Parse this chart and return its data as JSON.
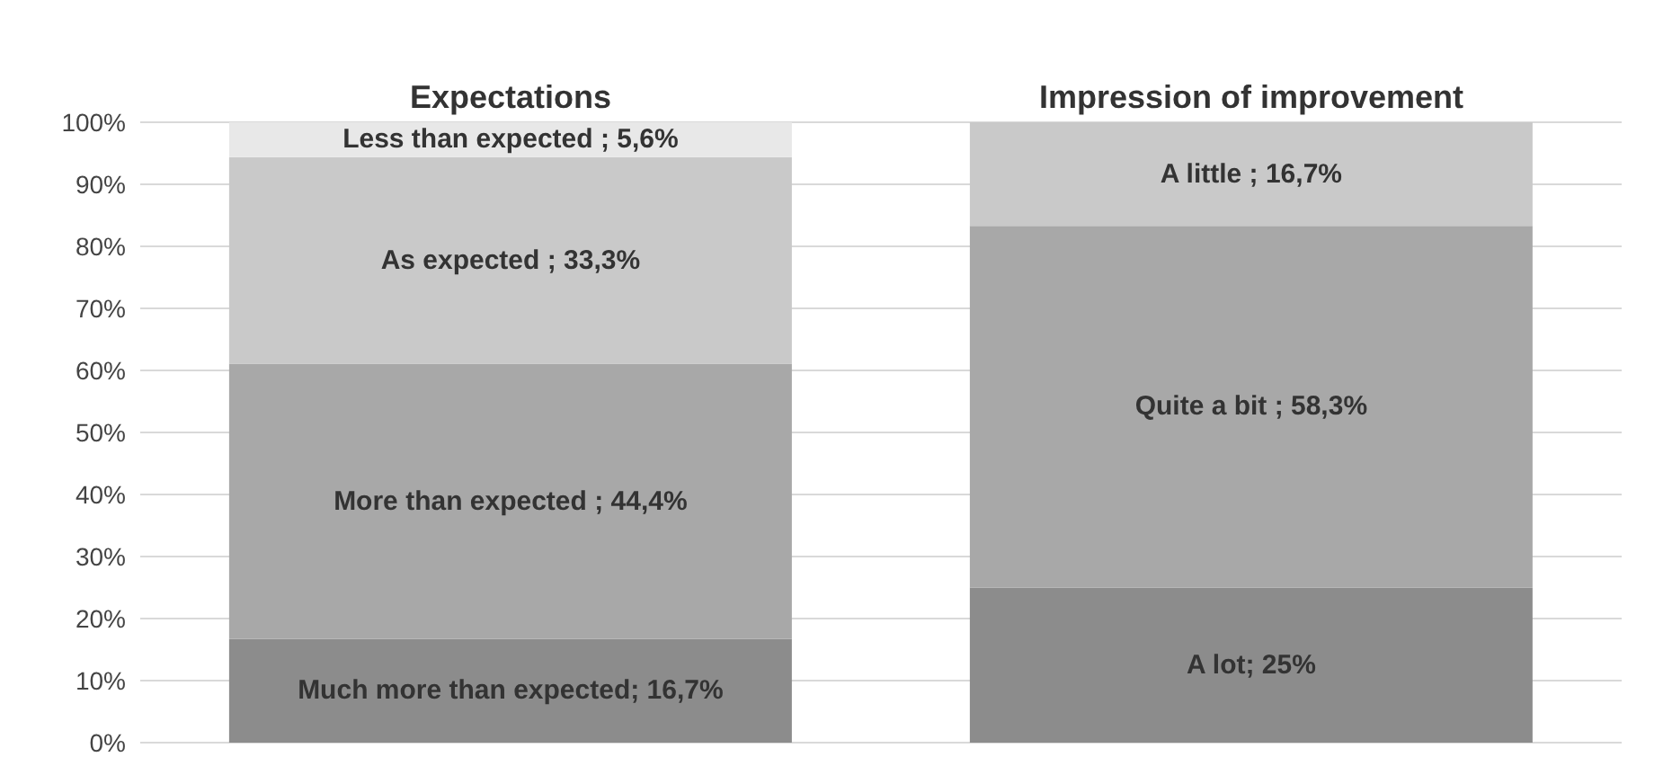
{
  "chart_data": {
    "type": "bar",
    "stacked": true,
    "categories": [
      "Expectations",
      "Impression of improvement"
    ],
    "series": [
      {
        "color": "#8c8c8c",
        "values": [
          16.7,
          25
        ],
        "value_labels": [
          "Much more than expected; 16,7%",
          "A lot; 25%"
        ]
      },
      {
        "color": "#a8a8a8",
        "values": [
          44.4,
          58.3
        ],
        "value_labels": [
          "More than expected ; 44,4%",
          "Quite a bit ; 58,3%"
        ]
      },
      {
        "color": "#c9c9c9",
        "values": [
          33.3,
          16.7
        ],
        "value_labels": [
          "As expected ; 33,3%",
          "A little ; 16,7%"
        ]
      },
      {
        "color": "#e8e8e8",
        "values": [
          5.6,
          null
        ],
        "value_labels": [
          "Less than expected ; 5,6%",
          null
        ]
      }
    ],
    "ylim": [
      0,
      100
    ],
    "yticks": [
      {
        "value": 0,
        "label": "0%"
      },
      {
        "value": 10,
        "label": "10%"
      },
      {
        "value": 20,
        "label": "20%"
      },
      {
        "value": 30,
        "label": "30%"
      },
      {
        "value": 40,
        "label": "40%"
      },
      {
        "value": 50,
        "label": "50%"
      },
      {
        "value": 60,
        "label": "60%"
      },
      {
        "value": 70,
        "label": "70%"
      },
      {
        "value": 80,
        "label": "80%"
      },
      {
        "value": 90,
        "label": "90%"
      },
      {
        "value": 100,
        "label": "100%"
      }
    ],
    "grid": "y",
    "legend": false
  }
}
